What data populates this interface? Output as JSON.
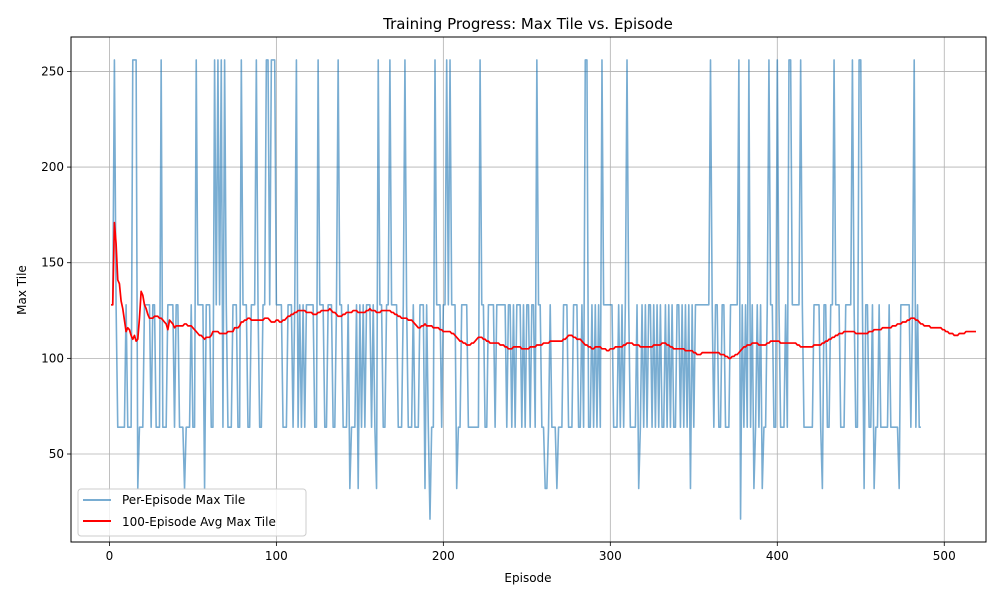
{
  "chart_data": {
    "type": "line",
    "title": "Training Progress: Max Tile vs. Episode",
    "xlabel": "Episode",
    "ylabel": "Max Tile",
    "xlim": [
      -23,
      525
    ],
    "ylim": [
      4,
      268
    ],
    "x_ticks": [
      0,
      100,
      200,
      300,
      400,
      500
    ],
    "y_ticks": [
      50,
      100,
      150,
      200,
      250
    ],
    "grid": true,
    "legend_position": "lower-left",
    "series": [
      {
        "name": "Per-Episode Max Tile",
        "color": "#1f77b4",
        "opacity": 0.6,
        "x_start": 1,
        "values": [
          128,
          128,
          256,
          128,
          64,
          64,
          64,
          64,
          64,
          128,
          64,
          64,
          64,
          256,
          256,
          256,
          32,
          64,
          64,
          64,
          128,
          128,
          128,
          128,
          64,
          128,
          128,
          64,
          64,
          64,
          256,
          64,
          64,
          64,
          128,
          128,
          128,
          128,
          64,
          128,
          128,
          64,
          64,
          64,
          32,
          64,
          64,
          64,
          128,
          64,
          64,
          256,
          128,
          128,
          128,
          128,
          32,
          128,
          128,
          128,
          64,
          64,
          256,
          128,
          256,
          128,
          256,
          64,
          256,
          128,
          64,
          64,
          64,
          128,
          128,
          128,
          64,
          64,
          256,
          128,
          128,
          128,
          64,
          64,
          128,
          128,
          128,
          256,
          128,
          64,
          64,
          128,
          128,
          256,
          256,
          128,
          256,
          256,
          256,
          128,
          128,
          128,
          128,
          64,
          64,
          64,
          128,
          128,
          128,
          64,
          128,
          256,
          64,
          128,
          64,
          128,
          64,
          128,
          128,
          128,
          128,
          128,
          64,
          64,
          256,
          128,
          128,
          128,
          64,
          64,
          128,
          128,
          128,
          64,
          64,
          128,
          256,
          128,
          128,
          64,
          64,
          64,
          128,
          32,
          64,
          64,
          64,
          128,
          32,
          128,
          64,
          128,
          64,
          128,
          128,
          128,
          64,
          128,
          64,
          32,
          256,
          128,
          128,
          64,
          64,
          128,
          128,
          256,
          128,
          128,
          128,
          128,
          64,
          64,
          64,
          128,
          256,
          128,
          64,
          64,
          64,
          128,
          64,
          64,
          64,
          128,
          128,
          128,
          32,
          128,
          64,
          16,
          64,
          64,
          256,
          128,
          128,
          128,
          64,
          128,
          128,
          256,
          128,
          256,
          128,
          128,
          128,
          32,
          64,
          64,
          128,
          128,
          128,
          128,
          64,
          64,
          64,
          64,
          64,
          64,
          64,
          256,
          128,
          128,
          64,
          64,
          128,
          128,
          128,
          128,
          64,
          128,
          128,
          128,
          128,
          128,
          128,
          64,
          128,
          128,
          64,
          128,
          64,
          128,
          128,
          128,
          64,
          128,
          64,
          128,
          128,
          64,
          128,
          128,
          64,
          256,
          128,
          128,
          64,
          64,
          32,
          32,
          64,
          128,
          64,
          64,
          64,
          32,
          64,
          64,
          64,
          128,
          128,
          128,
          64,
          64,
          64,
          128,
          128,
          128,
          64,
          64,
          128,
          64,
          256,
          256,
          64,
          64,
          128,
          64,
          128,
          64,
          128,
          64,
          256,
          128,
          128,
          128,
          128,
          128,
          128,
          64,
          64,
          64,
          128,
          64,
          128,
          64,
          128,
          256,
          128,
          64,
          64,
          64,
          64,
          128,
          32,
          64,
          128,
          64,
          128,
          64,
          128,
          128,
          64,
          128,
          64,
          128,
          64,
          128,
          64,
          64,
          128,
          64,
          128,
          64,
          128,
          64,
          64,
          128,
          128,
          64,
          128,
          64,
          128,
          64,
          128,
          32,
          128,
          64,
          128,
          128,
          128,
          128,
          128,
          128,
          128,
          128,
          128,
          256,
          128,
          64,
          128,
          128,
          64,
          64,
          128,
          128,
          64,
          64,
          64,
          128,
          128,
          128,
          128,
          128,
          256,
          16,
          128,
          64,
          128,
          64,
          256,
          64,
          128,
          32,
          64,
          128,
          64,
          128,
          32,
          64,
          64,
          128,
          256,
          128,
          128,
          64,
          64,
          256,
          128,
          64,
          64,
          64,
          128,
          64,
          256,
          256,
          128,
          128,
          128,
          128,
          128,
          256,
          128,
          64,
          64,
          64,
          64,
          64,
          64,
          128,
          128,
          128,
          128,
          64,
          32,
          128,
          128,
          64,
          64,
          128,
          128,
          256,
          128,
          128,
          128,
          64,
          64,
          64,
          128,
          128,
          128,
          128,
          256,
          128,
          64,
          64,
          256,
          256,
          128,
          32,
          128,
          128,
          64,
          64,
          128,
          32,
          64,
          64,
          128,
          64,
          64,
          64,
          64,
          64,
          128,
          64,
          64,
          64,
          64,
          64,
          32,
          128,
          128,
          128,
          128,
          128,
          128,
          64,
          128,
          256,
          64,
          128,
          64,
          64
        ]
      },
      {
        "name": "100-Episode Avg Max Tile",
        "color": "#ff0000",
        "x_start": 1,
        "values": [
          128,
          128,
          171,
          160,
          141,
          139,
          130,
          126,
          120,
          114,
          116,
          115,
          112,
          110,
          112,
          109,
          110,
          121,
          135,
          133,
          128,
          126,
          123,
          121,
          121,
          121,
          122,
          122,
          122,
          121,
          121,
          120,
          119,
          118,
          115,
          120,
          119,
          118,
          116,
          117,
          117,
          117,
          117,
          117,
          118,
          118,
          117,
          117,
          117,
          116,
          115,
          114,
          113,
          112,
          112,
          111,
          110,
          111,
          111,
          111,
          112,
          114,
          114,
          114,
          114,
          113,
          113,
          113,
          113,
          113,
          114,
          114,
          114,
          114,
          116,
          116,
          116,
          117,
          119,
          119,
          120,
          120,
          121,
          121,
          120,
          120,
          120,
          120,
          120,
          120,
          120,
          120,
          121,
          121,
          121,
          120,
          119,
          119,
          119,
          120,
          120,
          119,
          119,
          120,
          120,
          121,
          122,
          122,
          123,
          123,
          124,
          124,
          125,
          125,
          125,
          125,
          125,
          124,
          124,
          124,
          124,
          123,
          123,
          123,
          124,
          124,
          125,
          125,
          125,
          125,
          125,
          126,
          125,
          124,
          124,
          123,
          122,
          122,
          122,
          123,
          123,
          124,
          124,
          124,
          124,
          125,
          125,
          125,
          124,
          124,
          124,
          124,
          124,
          125,
          125,
          126,
          125,
          125,
          125,
          124,
          124,
          124,
          125,
          125,
          125,
          125,
          125,
          125,
          124,
          124,
          123,
          123,
          122,
          122,
          121,
          121,
          121,
          121,
          120,
          120,
          120,
          119,
          118,
          117,
          116,
          116,
          117,
          117,
          118,
          117,
          117,
          117,
          117,
          116,
          116,
          116,
          116,
          115,
          115,
          114,
          114,
          114,
          114,
          114,
          113,
          113,
          112,
          111,
          110,
          109,
          109,
          108,
          108,
          107,
          107,
          107,
          108,
          108,
          109,
          110,
          111,
          111,
          111,
          110,
          110,
          109,
          109,
          108,
          108,
          108,
          108,
          108,
          108,
          107,
          107,
          107,
          106,
          106,
          105,
          105,
          105,
          106,
          106,
          106,
          106,
          106,
          105,
          105,
          105,
          105,
          105,
          106,
          106,
          106,
          106,
          107,
          107,
          107,
          107,
          108,
          108,
          108,
          108,
          109,
          109,
          109,
          109,
          109,
          109,
          109,
          109,
          110,
          110,
          111,
          112,
          112,
          112,
          111,
          111,
          110,
          110,
          110,
          109,
          108,
          107,
          107,
          106,
          106,
          105,
          105,
          106,
          106,
          106,
          106,
          105,
          105,
          105,
          104,
          104,
          105,
          105,
          105,
          106,
          106,
          106,
          106,
          106,
          107,
          107,
          108,
          108,
          108,
          108,
          107,
          107,
          107,
          107,
          106,
          106,
          106,
          106,
          106,
          106,
          106,
          106,
          107,
          107,
          107,
          107,
          107,
          108,
          108,
          108,
          107,
          107,
          106,
          106,
          105,
          105,
          105,
          105,
          105,
          105,
          105,
          104,
          104,
          104,
          104,
          104,
          103,
          103,
          102,
          102,
          102,
          103,
          103,
          103,
          103,
          103,
          103,
          103,
          103,
          103,
          103,
          103,
          102,
          102,
          102,
          101,
          101,
          100,
          100,
          101,
          101,
          102,
          102,
          103,
          104,
          105,
          106,
          106,
          107,
          107,
          107,
          108,
          108,
          108,
          108,
          107,
          107,
          107,
          107,
          107,
          108,
          108,
          109,
          109,
          109,
          109,
          109,
          109,
          108,
          108,
          108,
          108,
          108,
          108,
          108,
          108,
          108,
          108,
          107,
          107,
          106,
          106,
          106,
          106,
          106,
          106,
          106,
          106,
          107,
          107,
          107,
          107,
          107,
          108,
          108,
          109,
          109,
          110,
          110,
          111,
          111,
          112,
          112,
          113,
          113,
          113,
          114,
          114,
          114,
          114,
          114,
          114,
          114,
          113,
          113,
          113,
          113,
          113,
          113,
          113,
          113,
          114,
          114,
          114,
          115,
          115,
          115,
          115,
          115,
          116,
          116,
          116,
          116,
          116,
          116,
          117,
          117,
          117,
          118,
          118,
          118,
          119,
          119,
          119,
          120,
          120,
          121,
          121,
          121,
          120,
          120,
          119,
          118,
          118,
          117,
          117,
          117,
          117,
          116,
          116,
          116,
          116,
          116,
          116,
          116,
          115,
          115,
          114,
          114,
          113,
          113,
          113,
          112,
          112,
          112,
          113,
          113,
          113,
          113,
          114,
          114,
          114,
          114,
          114,
          114,
          114
        ]
      }
    ]
  }
}
